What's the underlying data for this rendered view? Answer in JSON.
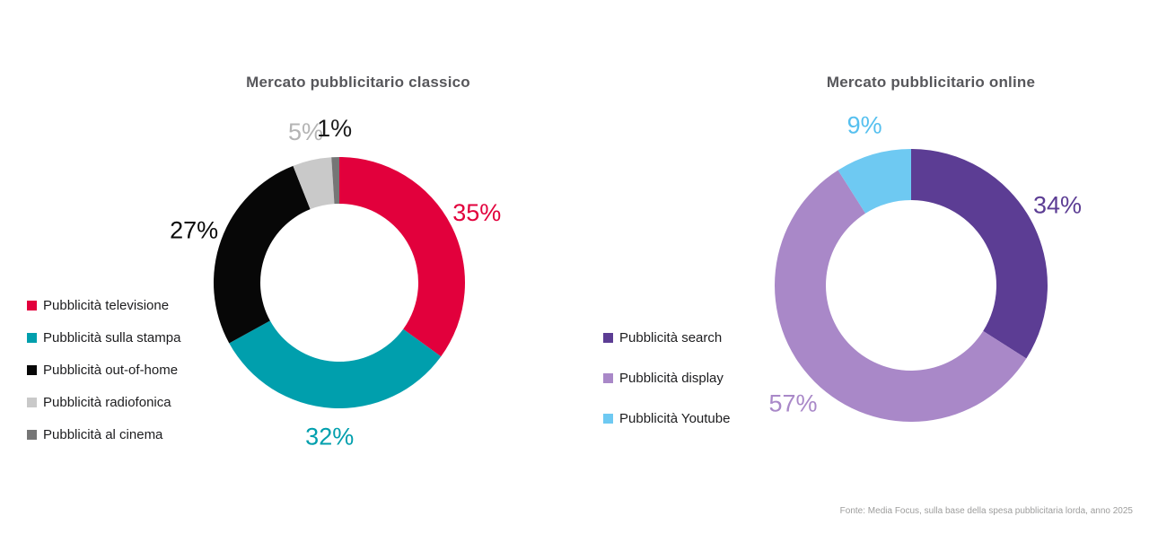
{
  "chart_data": [
    {
      "type": "pie",
      "donut": true,
      "title": "Mercato pubblicitario classico",
      "categories": [
        "Pubblicità televisione",
        "Pubblicità sulla stampa",
        "Pubblicità out-of-home",
        "Pubblicità radiofonica",
        "Pubblicità al cinema"
      ],
      "values": [
        35,
        32,
        27,
        5,
        1
      ],
      "value_labels": [
        "35%",
        "32%",
        "27%",
        "5%",
        "1%"
      ],
      "colors": [
        "#e2003c",
        "#009fad",
        "#070707",
        "#c9c9c9",
        "#767676"
      ],
      "label_colors": [
        "#e2003c",
        "#009fad",
        "#0a0a0a",
        "#b4b4b4",
        "#1a1a1a"
      ],
      "legend_position": "left",
      "start_angle_deg": 0,
      "direction": "clockwise"
    },
    {
      "type": "pie",
      "donut": true,
      "title": "Mercato pubblicitario online",
      "categories": [
        "Pubblicità search",
        "Pubblicità display",
        "Pubblicità Youtube"
      ],
      "values": [
        34,
        57,
        9
      ],
      "value_labels": [
        "34%",
        "57%",
        "9%"
      ],
      "colors": [
        "#5c3d94",
        "#a988c8",
        "#6ec9f2"
      ],
      "label_colors": [
        "#5c3d94",
        "#a988c8",
        "#56c0ef"
      ],
      "legend_position": "left",
      "start_angle_deg": 0,
      "direction": "clockwise"
    }
  ],
  "footer": "Fonte: Media Focus, sulla base della spesa pubblicitaria lorda, anno 2025"
}
